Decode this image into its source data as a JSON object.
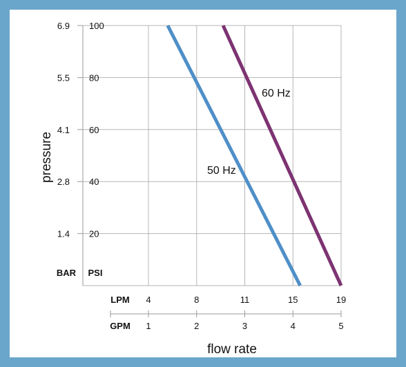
{
  "chart_data": {
    "type": "line",
    "xlabel": "flow rate",
    "ylabel": "pressure",
    "x_unit_primary": "LPM",
    "x_unit_secondary": "GPM",
    "y_unit_primary": "PSI",
    "y_unit_secondary": "BAR",
    "x_ticks_lpm": [
      "4",
      "8",
      "11",
      "15",
      "19"
    ],
    "x_ticks_gpm": [
      "1",
      "2",
      "3",
      "4",
      "5"
    ],
    "y_ticks_psi": [
      "20",
      "40",
      "60",
      "80",
      "100"
    ],
    "y_ticks_bar": [
      "1.4",
      "2.8",
      "4.1",
      "5.5",
      "6.9"
    ],
    "xlim_gpm": [
      1,
      5
    ],
    "ylim_psi": [
      0,
      100
    ],
    "grid": true,
    "series": [
      {
        "name": "50 Hz",
        "color": "#4f8fc8",
        "x_gpm": [
          1.4,
          4.15
        ],
        "y_psi": [
          100,
          0
        ]
      },
      {
        "name": "60 Hz",
        "color": "#7d3372",
        "x_gpm": [
          2.55,
          5.0
        ],
        "y_psi": [
          100,
          0
        ]
      }
    ]
  }
}
